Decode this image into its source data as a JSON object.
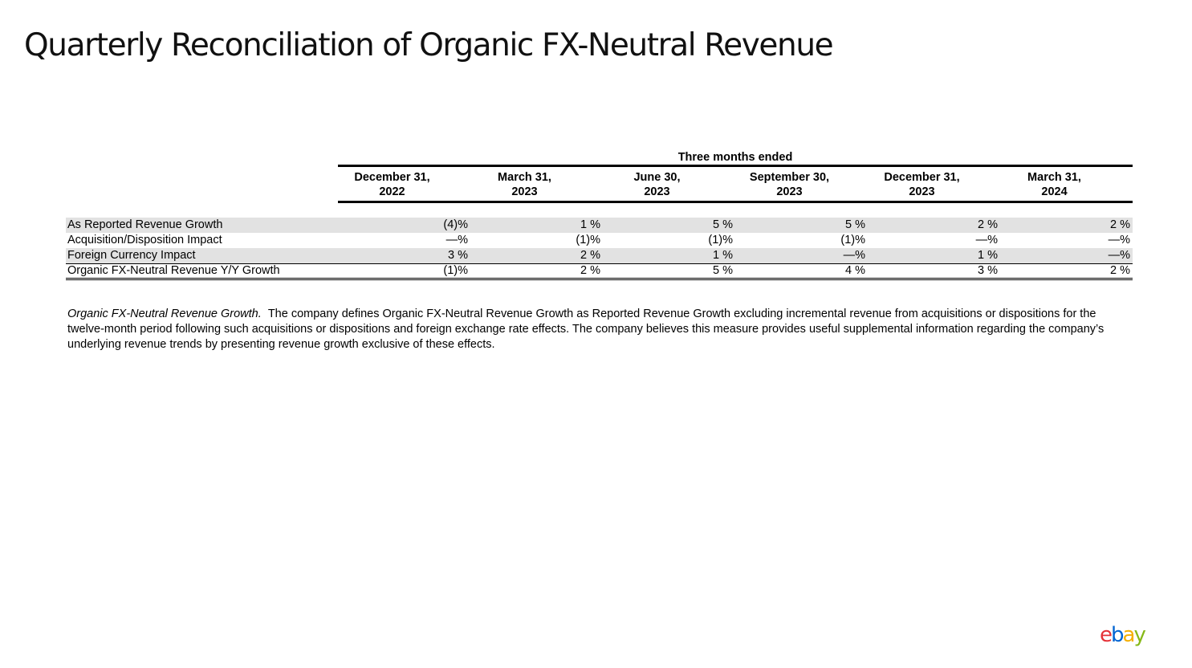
{
  "title": "Quarterly Reconciliation of Organic FX-Neutral Revenue",
  "table": {
    "group_header": "Three months ended",
    "periods": [
      {
        "line1": "December 31,",
        "line2": "2022"
      },
      {
        "line1": "March 31,",
        "line2": "2023"
      },
      {
        "line1": "June 30,",
        "line2": "2023"
      },
      {
        "line1": "September 30,",
        "line2": "2023"
      },
      {
        "line1": "December 31,",
        "line2": "2023"
      },
      {
        "line1": "March 31,",
        "line2": "2024"
      }
    ],
    "rows": [
      {
        "label": "As Reported Revenue Growth",
        "values": [
          "(4)%",
          "1 %",
          "5 %",
          "5 %",
          "2 %",
          "2 %"
        ]
      },
      {
        "label": "Acquisition/Disposition Impact",
        "values": [
          "—%",
          "(1)%",
          "(1)%",
          "(1)%",
          "—%",
          "—%"
        ]
      },
      {
        "label": "Foreign Currency Impact",
        "values": [
          "3 %",
          "2 %",
          "1 %",
          "—%",
          "1 %",
          "—%"
        ]
      },
      {
        "label": "Organic FX-Neutral Revenue Y/Y Growth",
        "values": [
          "(1)%",
          "2 %",
          "5 %",
          "4 %",
          "3 %",
          "2 %"
        ]
      }
    ]
  },
  "footnote": {
    "lead": "Organic FX-Neutral Revenue Growth.",
    "body": "The company defines Organic FX-Neutral Revenue Growth as Reported Revenue Growth excluding incremental revenue from acquisitions or dispositions for the twelve-month period following such acquisitions or dispositions and foreign exchange rate effects.  The company believes this measure provides useful supplemental information regarding the company’s underlying revenue trends by presenting revenue growth exclusive of these effects."
  },
  "logo": {
    "e": "e",
    "b": "b",
    "a": "a",
    "y": "y"
  },
  "logo_colors": {
    "e": "#e53238",
    "b": "#0064d2",
    "a": "#f5af02",
    "y": "#86b817"
  }
}
